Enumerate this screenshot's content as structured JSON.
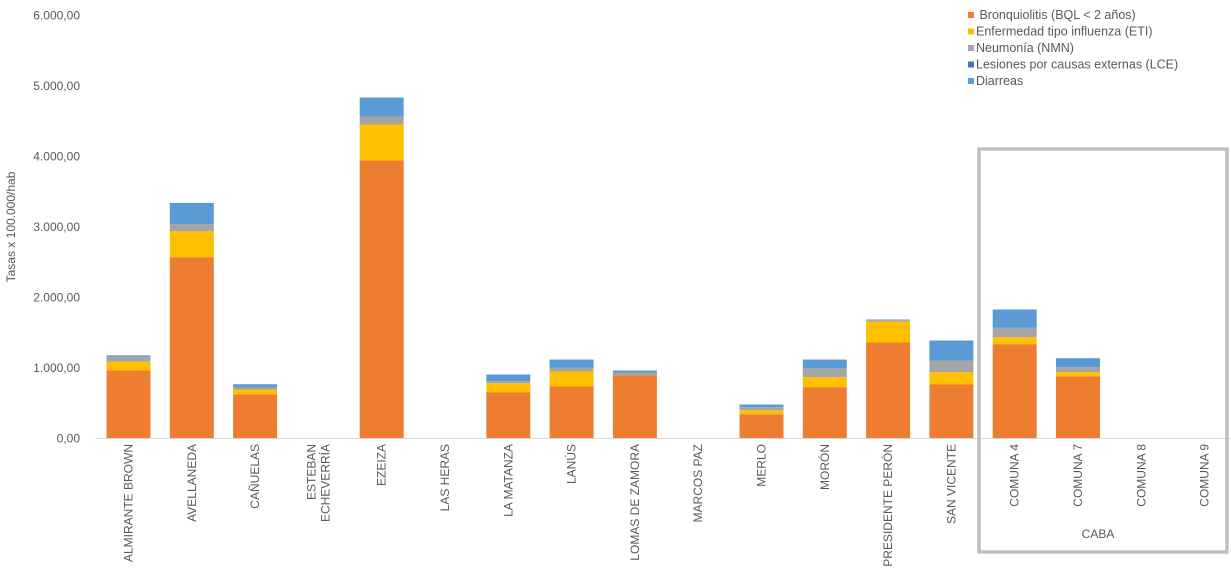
{
  "chart_data": {
    "type": "bar",
    "stacked": true,
    "ylabel": "Tasas x 100.000/hab",
    "ylim": [
      0,
      6000
    ],
    "yticks": [
      "0,00",
      "1.000,00",
      "2.000,00",
      "3.000,00",
      "4.000,00",
      "5.000,00",
      "6.000,00"
    ],
    "grid": false,
    "legend_position": "top-right",
    "categories": [
      "ALMIRANTE BROWN",
      "AVELLANEDA",
      "CAÑUELAS",
      "ESTEBAN ECHEVERRÍA",
      "EZEIZA",
      "LAS HERAS",
      "LA MATANZA",
      "LANÚS",
      "LOMAS DE ZAMORA",
      "MARCOS PAZ",
      "MERLO",
      "MORÓN",
      "PRESIDENTE PERÓN",
      "SAN VICENTE",
      "COMUNA 4",
      "COMUNA 7",
      "COMUNA 8",
      "COMUNA 9"
    ],
    "group_annotation": {
      "label": "CABA",
      "categories": [
        "COMUNA 4",
        "COMUNA 7",
        "COMUNA 8",
        "COMUNA 9"
      ]
    },
    "series": [
      {
        "name": " Bronquiolitis (BQL < 2 años)",
        "color": "#ED7D31",
        "values": [
          965,
          2572,
          628,
          0,
          3943,
          0,
          657,
          738,
          894,
          0,
          345,
          728,
          1362,
          766,
          1338,
          879,
          0,
          0
        ]
      },
      {
        "name": "Enfermedad tipo influenza (ETI)",
        "color": "#FFC000",
        "values": [
          125,
          370,
          67,
          0,
          511,
          0,
          127,
          212,
          0,
          0,
          56,
          142,
          298,
          175,
          99,
          62,
          0,
          0
        ]
      },
      {
        "name": "Neumonía (NMN)",
        "color": "#A5A5A5",
        "values": [
          70,
          100,
          28,
          0,
          113,
          0,
          29,
          53,
          42,
          0,
          43,
          128,
          18,
          165,
          137,
          71,
          0,
          0
        ]
      },
      {
        "name": "Lesiones por causas externas (LCE)",
        "color": "#4472C4",
        "values": [
          0,
          0,
          0,
          0,
          0,
          0,
          0,
          0,
          0,
          0,
          0,
          0,
          0,
          0,
          0,
          0,
          0,
          0
        ]
      },
      {
        "name": "Diarreas",
        "color": "#5B9BD5",
        "values": [
          20,
          300,
          47,
          0,
          270,
          0,
          95,
          117,
          29,
          0,
          38,
          122,
          10,
          284,
          256,
          127,
          0,
          0
        ]
      }
    ]
  }
}
